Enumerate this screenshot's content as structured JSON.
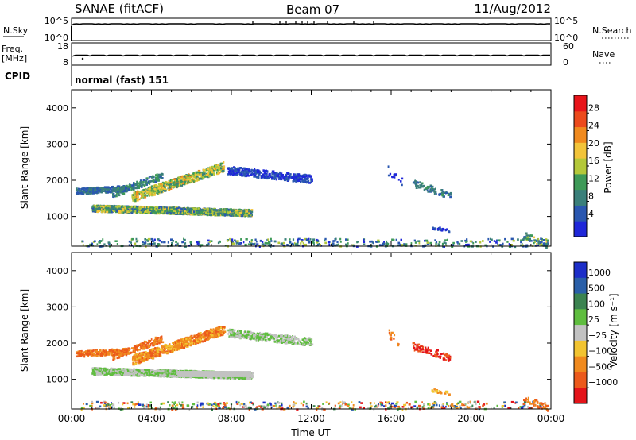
{
  "header": {
    "station": "SANAE (fitACF)",
    "beam": "Beam 07",
    "date": "11/Aug/2012"
  },
  "top_panels": {
    "nsky_label": "N.Sky",
    "nsky_ticks": [
      "10^5",
      "10^0"
    ],
    "nsearch_label": "N.Search",
    "nsearch_ticks": [
      "10^5",
      "10^0"
    ],
    "freq_label_1": "Freq.",
    "freq_label_2": "[MHz]",
    "freq_ticks": [
      "18",
      "8"
    ],
    "nave_label": "Nave",
    "nave_ticks": [
      "60",
      "0"
    ],
    "cpid_label": "CPID",
    "cpid_text": "normal (fast) 151"
  },
  "colors": {
    "power": [
      "#1f27d9",
      "#2a57b0",
      "#3a7f7a",
      "#3e9a58",
      "#b4c83a",
      "#f2c43a",
      "#f08a1e",
      "#ec4a1c",
      "#e8141a"
    ],
    "velocity": [
      "#1c2ec8",
      "#2a5fa8",
      "#3b8350",
      "#5fbd3f",
      "#c2c2c2",
      "#f2c431",
      "#f08a1e",
      "#ec5a1c",
      "#e4141a"
    ]
  },
  "chart_data": [
    {
      "type": "heatmap",
      "name": "Power",
      "xlabel": "",
      "ylabel": "Slant Range [km]",
      "x_range": [
        "00:00",
        "24:00"
      ],
      "ylim": [
        180,
        4500
      ],
      "y_ticks": [
        1000,
        2000,
        3000,
        4000
      ],
      "colorbar": {
        "label": "Power [dB]",
        "range": [
          0,
          32
        ],
        "ticks": [
          "4",
          "8",
          "12",
          "16",
          "20",
          "24",
          "28"
        ],
        "tick_values": [
          4,
          8,
          12,
          16,
          20,
          24,
          28
        ]
      }
    },
    {
      "type": "heatmap",
      "name": "Velocity",
      "xlabel": "Time UT",
      "ylabel": "Slant Range [km]",
      "x_range": [
        "00:00",
        "24:00"
      ],
      "x_ticks": [
        "00:00",
        "04:00",
        "08:00",
        "12:00",
        "16:00",
        "20:00",
        "00:00"
      ],
      "ylim": [
        180,
        4500
      ],
      "y_ticks": [
        1000,
        2000,
        3000,
        4000
      ],
      "colorbar": {
        "label": "Velocity [m s⁻¹]",
        "ticks": [
          "1000",
          "500",
          "100",
          "25",
          "−25",
          "−100",
          "−500",
          "−1000"
        ]
      }
    }
  ]
}
